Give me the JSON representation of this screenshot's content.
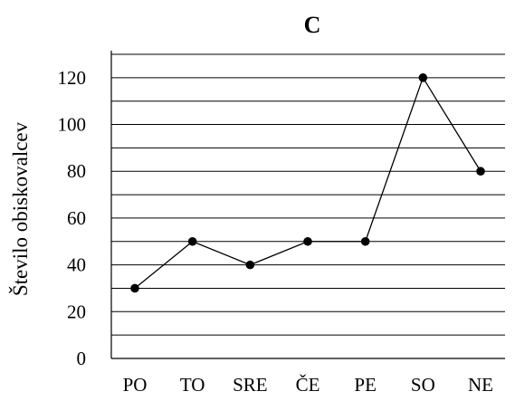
{
  "chart_data": {
    "type": "line",
    "title": "C",
    "xlabel": "",
    "ylabel": "Število obiskovalcev",
    "categories": [
      "PO",
      "TO",
      "SRE",
      "ČE",
      "PE",
      "SO",
      "NE"
    ],
    "series": [
      {
        "values": [
          30,
          50,
          40,
          50,
          50,
          120,
          80
        ]
      }
    ],
    "ylim": [
      0,
      130
    ],
    "yticks": [
      0,
      20,
      40,
      60,
      80,
      100,
      120
    ],
    "minor_grid_step": 10,
    "grid": true,
    "legend": "none",
    "marker": "circle"
  }
}
